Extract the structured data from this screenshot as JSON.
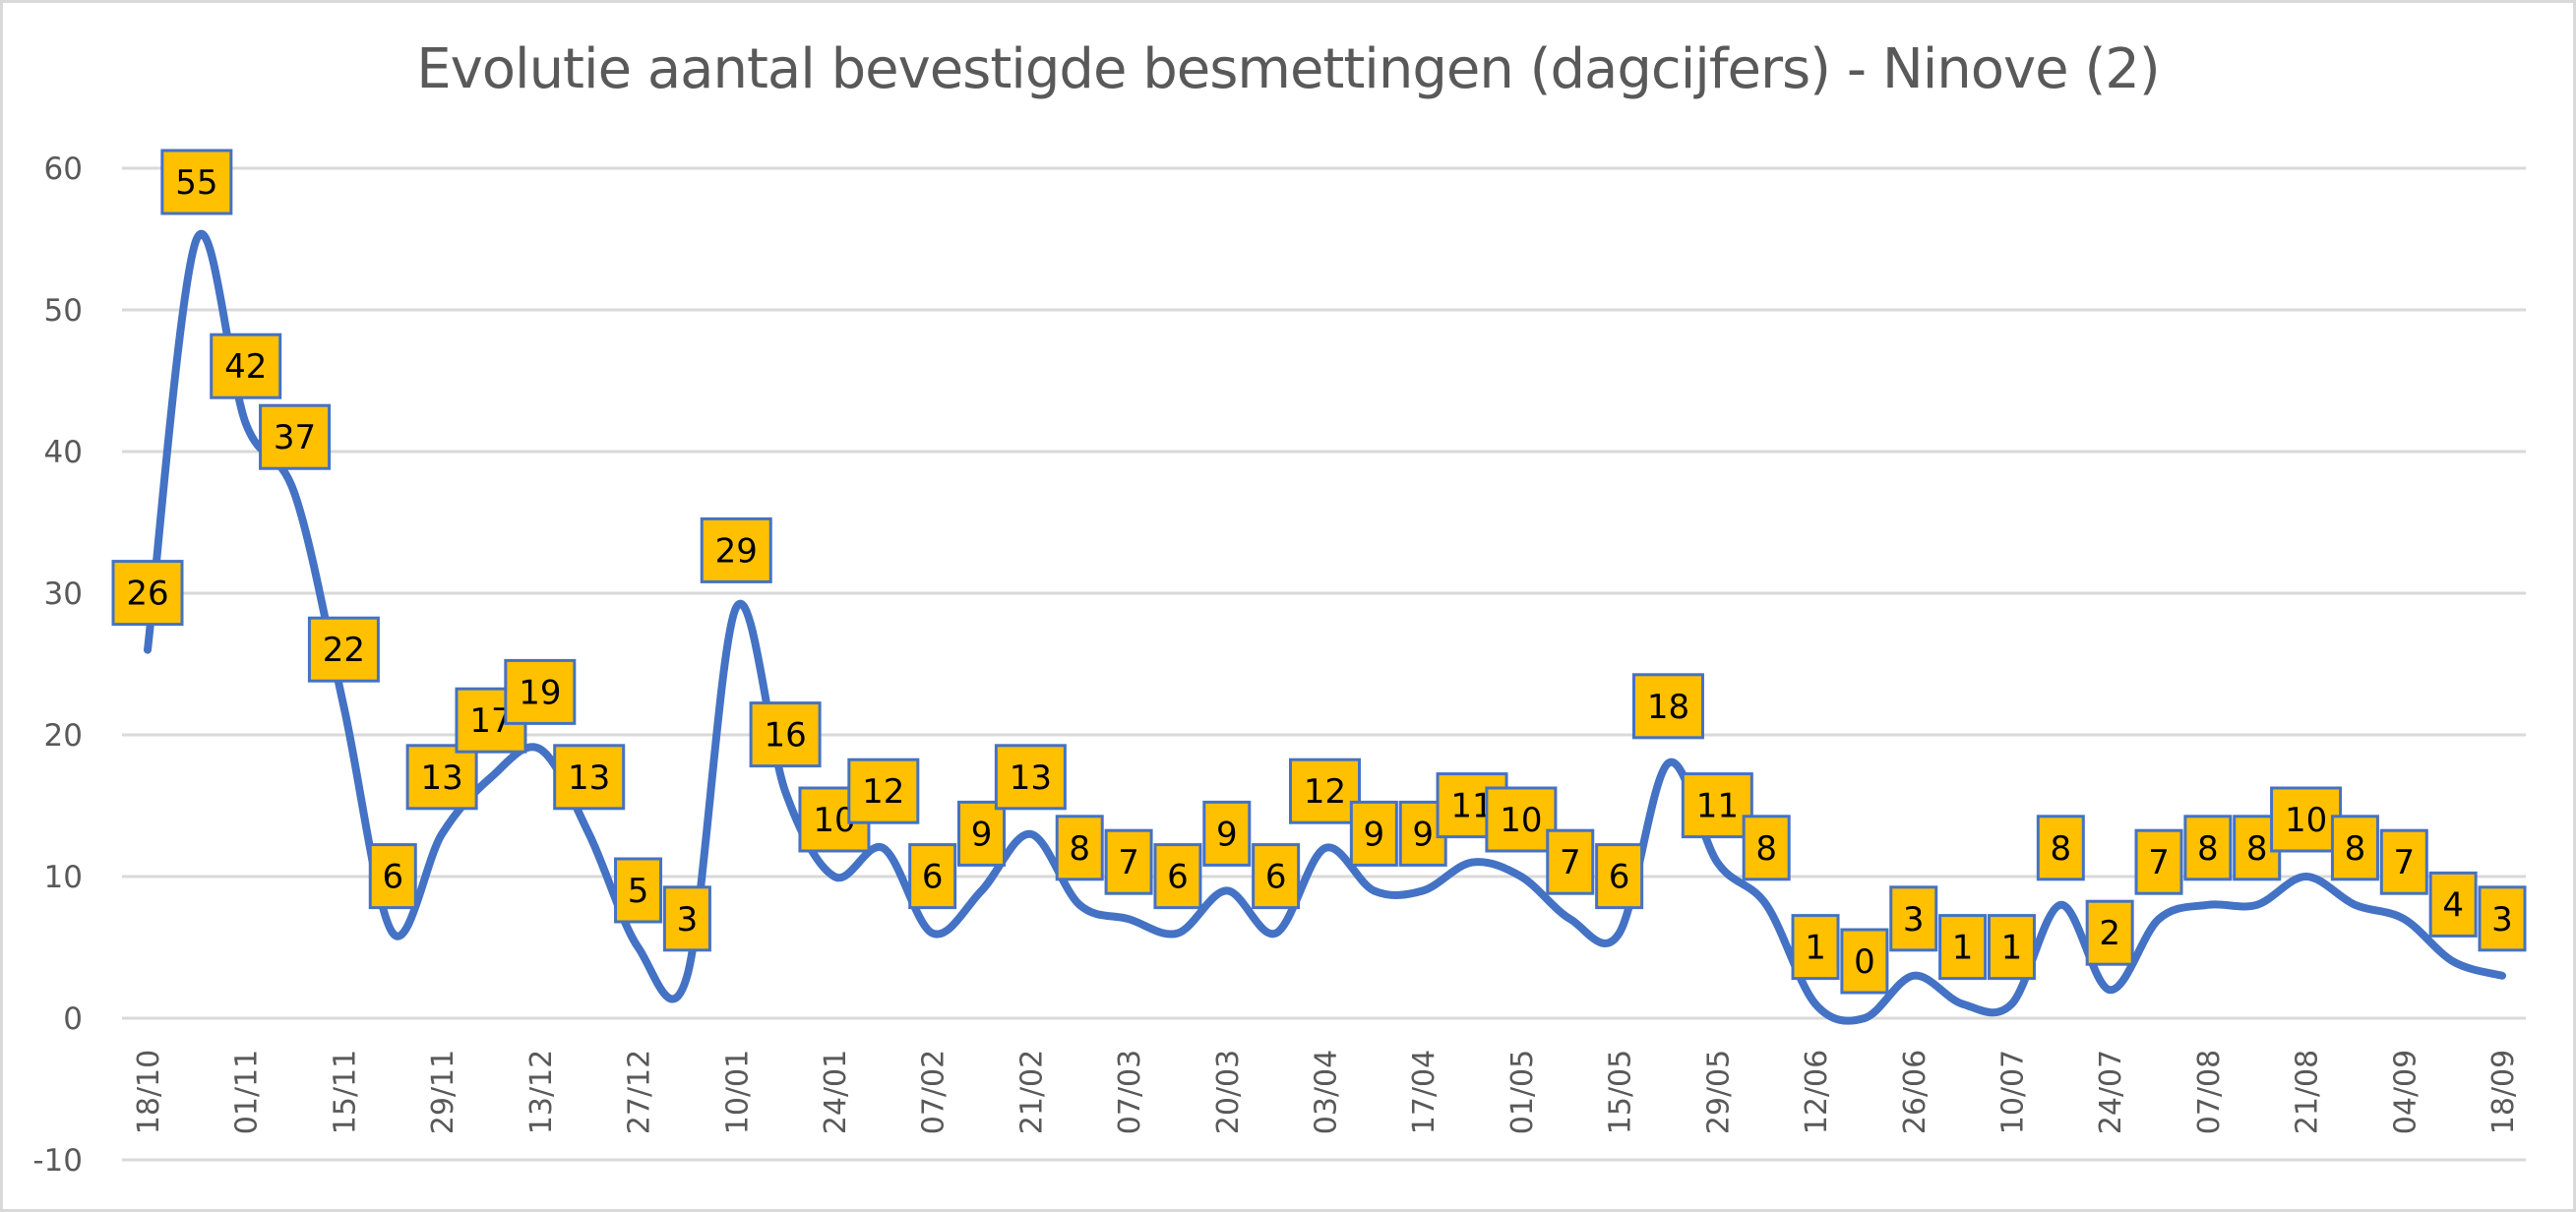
{
  "chart_data": {
    "type": "line",
    "title": "Evolutie aantal bevestigde besmettingen (dagcijfers) - Ninove (2)",
    "xlabel": "",
    "ylabel": "",
    "ylim": [
      -10,
      60
    ],
    "yticks": [
      -10,
      0,
      10,
      20,
      30,
      40,
      50,
      60
    ],
    "grid": true,
    "smooth": true,
    "x_tick_labels": [
      "18/10",
      "01/11",
      "15/11",
      "29/11",
      "13/12",
      "27/12",
      "10/01",
      "24/01",
      "07/02",
      "21/02",
      "07/03",
      "20/03",
      "03/04",
      "17/04",
      "01/05",
      "15/05",
      "29/05",
      "12/06",
      "26/06",
      "10/07",
      "24/07",
      "07/08",
      "21/08",
      "04/09",
      "18/09"
    ],
    "x_tick_every": 2,
    "series": [
      {
        "name": "Ninove",
        "color": "#4472C4",
        "label_fill": "#FFC000",
        "label_border": "#4472C4",
        "values": [
          26,
          55,
          42,
          37,
          22,
          6,
          13,
          17,
          19,
          13,
          5,
          3,
          29,
          16,
          10,
          12,
          6,
          9,
          13,
          8,
          7,
          6,
          9,
          6,
          12,
          9,
          9,
          11,
          10,
          7,
          6,
          18,
          11,
          8,
          1,
          0,
          3,
          1,
          1,
          8,
          2,
          7,
          8,
          8,
          10,
          8,
          7,
          4,
          3
        ]
      }
    ]
  }
}
